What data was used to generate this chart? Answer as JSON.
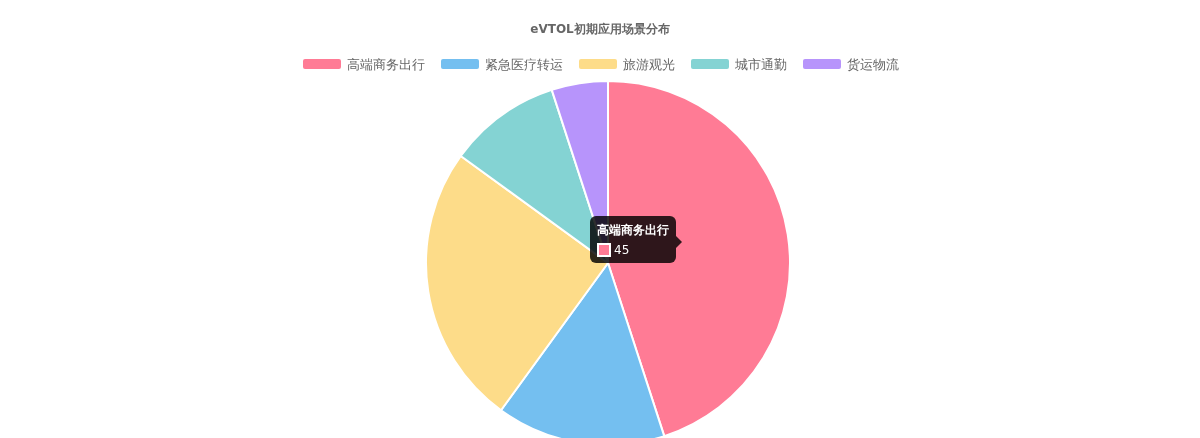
{
  "chart_data": {
    "type": "pie",
    "title": "eVTOL初期应用场景分布",
    "categories": [
      "高端商务出行",
      "紧急医疗转运",
      "旅游观光",
      "城市通勤",
      "货运物流"
    ],
    "values": [
      45,
      15,
      25,
      10,
      5
    ],
    "value_labels": [
      "45",
      null,
      null,
      null,
      null
    ],
    "colors": [
      "#ff7b95",
      "#74bff0",
      "#fddc89",
      "#84d3d3",
      "#b794fb"
    ],
    "legend": "top"
  }
}
